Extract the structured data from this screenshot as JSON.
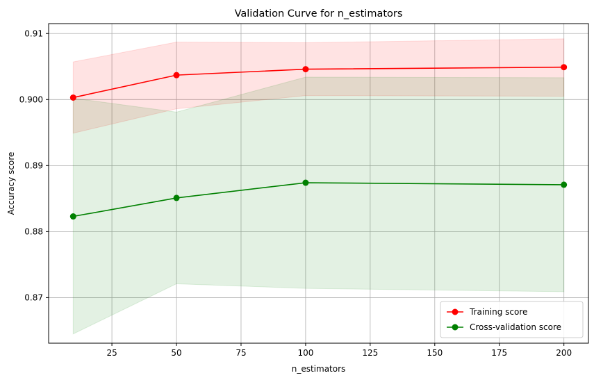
{
  "chart_data": {
    "type": "line",
    "title": "Validation Curve for n_estimators",
    "xlabel": "n_estimators",
    "ylabel": "Accuracy score",
    "x": [
      10,
      50,
      100,
      200
    ],
    "xlim": [
      0.5,
      209.5
    ],
    "ylim": [
      0.8631,
      0.9115
    ],
    "xticks": [
      25,
      50,
      75,
      100,
      125,
      150,
      175,
      200
    ],
    "yticks": [
      0.87,
      0.88,
      0.89,
      0.9,
      0.91
    ],
    "ytick_labels": [
      "0.87",
      "0.88",
      "0.89",
      "0.900",
      "0.91"
    ],
    "grid": true,
    "legend_position": "lower-right",
    "series": [
      {
        "name": "Training score",
        "color": "#ff0000",
        "fill_color": "#ff0000",
        "values": [
          0.9003,
          0.9037,
          0.9046,
          0.9049
        ],
        "band_upper": [
          0.9057,
          0.9087,
          0.9086,
          0.9092
        ],
        "band_lower": [
          0.8949,
          0.8986,
          0.9006,
          0.9005
        ]
      },
      {
        "name": "Cross-validation score",
        "color": "#008000",
        "fill_color": "#008000",
        "values": [
          0.8823,
          0.8851,
          0.8874,
          0.8871
        ],
        "band_upper": [
          0.9002,
          0.8981,
          0.9034,
          0.9033
        ],
        "band_lower": [
          0.8645,
          0.8721,
          0.8714,
          0.8709
        ]
      }
    ]
  }
}
